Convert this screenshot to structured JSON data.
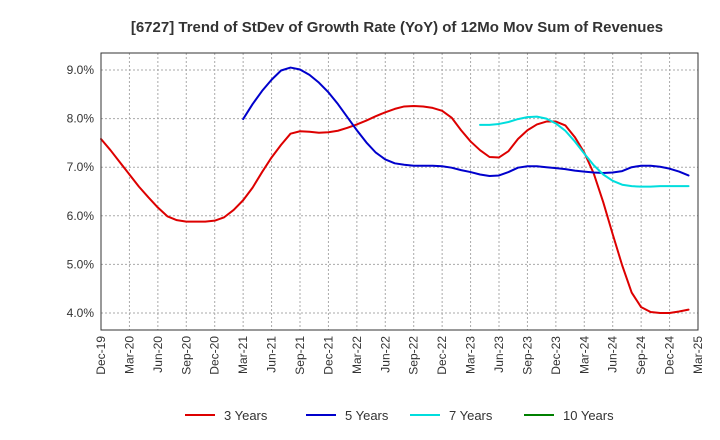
{
  "chart_data": {
    "type": "line",
    "title": "[6727]  Trend of StDev of Growth Rate (YoY) of 12Mo Mov Sum of Revenues",
    "xlabel": "",
    "ylabel": "",
    "ylim": [
      3.65,
      9.35
    ],
    "yticks": [
      4.0,
      5.0,
      6.0,
      7.0,
      8.0,
      9.0
    ],
    "ytick_labels": [
      "4.0%",
      "5.0%",
      "6.0%",
      "7.0%",
      "8.0%",
      "9.0%"
    ],
    "x_tick_labels": [
      "Dec-19",
      "Mar-20",
      "Jun-20",
      "Sep-20",
      "Dec-20",
      "Mar-21",
      "Jun-21",
      "Sep-21",
      "Dec-21",
      "Mar-22",
      "Jun-22",
      "Sep-22",
      "Dec-22",
      "Mar-23",
      "Jun-23",
      "Sep-23",
      "Dec-23",
      "Mar-24",
      "Jun-24",
      "Sep-24",
      "Dec-24",
      "Mar-25"
    ],
    "x_range_months": [
      0,
      63
    ],
    "grid": true,
    "legend_position": "bottom",
    "series": [
      {
        "name": "3 Years",
        "color": "#dd0000",
        "start_month": 0,
        "values": [
          7.58,
          7.35,
          7.1,
          6.85,
          6.6,
          6.38,
          6.17,
          5.99,
          5.91,
          5.88,
          5.88,
          5.88,
          5.9,
          5.97,
          6.12,
          6.32,
          6.58,
          6.9,
          7.2,
          7.46,
          7.69,
          7.74,
          7.73,
          7.71,
          7.72,
          7.75,
          7.81,
          7.88,
          7.96,
          8.05,
          8.13,
          8.2,
          8.25,
          8.26,
          8.25,
          8.22,
          8.16,
          8.02,
          7.76,
          7.53,
          7.35,
          7.21,
          7.2,
          7.33,
          7.58,
          7.76,
          7.88,
          7.94,
          7.94,
          7.86,
          7.62,
          7.3,
          6.87,
          6.28,
          5.62,
          4.98,
          4.42,
          4.12,
          4.02,
          4.0,
          4.0,
          4.03,
          4.07
        ]
      },
      {
        "name": "5 Years",
        "color": "#0000cc",
        "start_month": 15,
        "values": [
          7.99,
          8.3,
          8.57,
          8.8,
          8.99,
          9.05,
          9.01,
          8.9,
          8.74,
          8.54,
          8.3,
          8.03,
          7.76,
          7.51,
          7.3,
          7.16,
          7.08,
          7.05,
          7.03,
          7.03,
          7.03,
          7.02,
          6.99,
          6.94,
          6.9,
          6.85,
          6.82,
          6.83,
          6.9,
          6.99,
          7.02,
          7.02,
          7.0,
          6.98,
          6.96,
          6.93,
          6.91,
          6.89,
          6.88,
          6.89,
          6.92,
          7.0,
          7.03,
          7.03,
          7.01,
          6.97,
          6.91,
          6.83
        ]
      },
      {
        "name": "7 Years",
        "color": "#00dddd",
        "start_month": 40,
        "values": [
          7.87,
          7.87,
          7.89,
          7.93,
          7.99,
          8.03,
          8.04,
          8.0,
          7.9,
          7.75,
          7.53,
          7.28,
          7.04,
          6.85,
          6.72,
          6.64,
          6.61,
          6.6,
          6.6,
          6.61,
          6.61,
          6.61,
          6.61
        ]
      },
      {
        "name": "10 Years",
        "color": "#008000",
        "start_month": 0,
        "values": []
      }
    ]
  }
}
